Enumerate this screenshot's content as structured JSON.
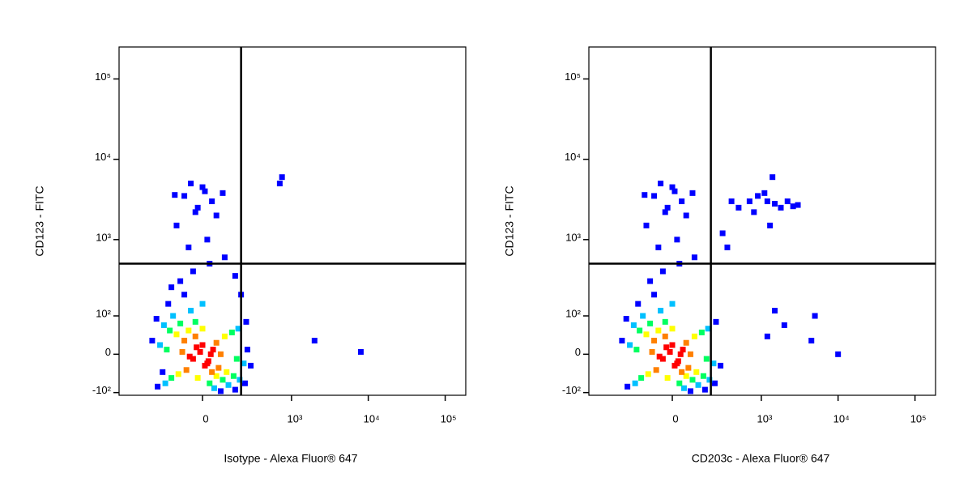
{
  "chart_data": [
    {
      "type": "scatter",
      "xlabel": "Isotype - Alexa Fluor® 647",
      "ylabel": "CD123 - FITC",
      "xscale": "asinh",
      "yscale": "asinh",
      "xlim": [
        -845,
        185000
      ],
      "ylim": [
        -110,
        250000
      ],
      "xticks": [
        0,
        {
          "value": 1000,
          "label": "10³"
        },
        {
          "value": 10000,
          "label": "10⁴"
        },
        {
          "value": 100000,
          "label": "10⁵"
        }
      ],
      "yticks": [
        {
          "value": -100,
          "label": "-10²"
        },
        0,
        {
          "value": 100,
          "label": "10²"
        },
        {
          "value": 1000,
          "label": "10³"
        },
        {
          "value": 10000,
          "label": "10⁴"
        },
        {
          "value": 100000,
          "label": "10⁵"
        }
      ],
      "gates": {
        "x": 200,
        "y": 500
      },
      "series": [
        {
          "color": "#0000ff",
          "x": [
            -260,
            240,
            -250,
            230,
            -170,
            160,
            -80,
            80,
            -300,
            280,
            -100,
            -40,
            30,
            100,
            -60,
            20,
            -120,
            60,
            -20,
            40,
            -80,
            10,
            -50,
            90,
            -130,
            0,
            -30,
            700,
            750,
            2000,
            8000,
            -150,
            160,
            200,
            -210,
            250
          ],
          "y": [
            90,
            80,
            -80,
            -70,
            150,
            -90,
            200,
            -95,
            30,
            -25,
            300,
            400,
            500,
            600,
            800,
            1000,
            1500,
            2000,
            2500,
            3000,
            3500,
            4000,
            5000,
            3800,
            3600,
            4500,
            2200,
            5000,
            6000,
            30,
            5,
            250,
            350,
            200,
            -40,
            10
          ]
        },
        {
          "color": "#00c0ff",
          "x": [
            -200,
            180,
            -190,
            190,
            -140,
            120,
            -50,
            50,
            -230,
            220,
            0
          ],
          "y": [
            70,
            60,
            -70,
            -60,
            100,
            -75,
            120,
            -85,
            20,
            -20,
            150
          ]
        },
        {
          "color": "#00ff60",
          "x": [
            -160,
            140,
            -150,
            150,
            -100,
            90,
            -30,
            30,
            -180,
            170
          ],
          "y": [
            55,
            50,
            -55,
            -50,
            75,
            -60,
            80,
            -70,
            10,
            -10
          ]
        },
        {
          "color": "#ffff00",
          "x": [
            -120,
            100,
            -110,
            110,
            -60,
            60,
            0,
            -20
          ],
          "y": [
            45,
            40,
            -45,
            -40,
            55,
            -50,
            60,
            -55
          ]
        },
        {
          "color": "#ff8000",
          "x": [
            -80,
            60,
            -70,
            70,
            -30,
            40,
            -90,
            80
          ],
          "y": [
            30,
            25,
            -35,
            -30,
            40,
            -40,
            5,
            0
          ]
        },
        {
          "color": "#ff0000",
          "x": [
            -40,
            -10,
            20,
            45,
            -25,
            10,
            35,
            -55,
            0,
            25
          ],
          "y": [
            -10,
            5,
            -20,
            10,
            15,
            -25,
            0,
            -5,
            20,
            -15
          ]
        }
      ]
    },
    {
      "type": "scatter",
      "xlabel": "CD203c - Alexa Fluor® 647",
      "ylabel": "CD123 - FITC",
      "xscale": "asinh",
      "yscale": "asinh",
      "xlim": [
        -845,
        185000
      ],
      "ylim": [
        -110,
        250000
      ],
      "xticks": [
        0,
        {
          "value": 1000,
          "label": "10³"
        },
        {
          "value": 10000,
          "label": "10⁴"
        },
        {
          "value": 100000,
          "label": "10⁵"
        }
      ],
      "yticks": [
        {
          "value": -100,
          "label": "-10²"
        },
        0,
        {
          "value": 100,
          "label": "10²"
        },
        {
          "value": 1000,
          "label": "10³"
        },
        {
          "value": 10000,
          "label": "10⁴"
        },
        {
          "value": 100000,
          "label": "10⁵"
        }
      ],
      "gates": {
        "x": 200,
        "y": 500
      },
      "series": [
        {
          "color": "#0000ff",
          "x": [
            -260,
            240,
            -250,
            230,
            -170,
            160,
            -80,
            80,
            -300,
            280,
            -100,
            -40,
            30,
            100,
            -60,
            20,
            -120,
            60,
            -20,
            40,
            -80,
            10,
            -50,
            90,
            -130,
            0,
            -30,
            500,
            700,
            900,
            1200,
            1500,
            1800,
            2200,
            2600,
            3000,
            800,
            1100,
            1400,
            400,
            1300,
            5000,
            10000,
            4500,
            1500,
            1200,
            2000,
            300,
            350
          ],
          "y": [
            90,
            80,
            -80,
            -70,
            150,
            -90,
            200,
            -95,
            30,
            -25,
            300,
            400,
            500,
            600,
            800,
            1000,
            1500,
            2000,
            2500,
            3000,
            3500,
            4000,
            5000,
            3800,
            3600,
            4500,
            2200,
            2500,
            3000,
            3500,
            3000,
            2800,
            2500,
            3000,
            2600,
            2700,
            2200,
            3800,
            6000,
            3000,
            1500,
            100,
            0,
            30,
            120,
            40,
            70,
            1200,
            800
          ]
        },
        {
          "color": "#00c0ff",
          "x": [
            -200,
            180,
            -190,
            190,
            -140,
            120,
            -50,
            50,
            -230,
            220,
            0
          ],
          "y": [
            70,
            60,
            -70,
            -60,
            100,
            -75,
            120,
            -85,
            20,
            -20,
            150
          ]
        },
        {
          "color": "#00ff60",
          "x": [
            -160,
            140,
            -150,
            150,
            -100,
            90,
            -30,
            30,
            -180,
            170
          ],
          "y": [
            55,
            50,
            -55,
            -50,
            75,
            -60,
            80,
            -70,
            10,
            -10
          ]
        },
        {
          "color": "#ffff00",
          "x": [
            -120,
            100,
            -110,
            110,
            -60,
            60,
            0,
            -20
          ],
          "y": [
            45,
            40,
            -45,
            -40,
            55,
            -50,
            60,
            -55
          ]
        },
        {
          "color": "#ff8000",
          "x": [
            -80,
            60,
            -70,
            70,
            -30,
            40,
            -90,
            80
          ],
          "y": [
            30,
            25,
            -35,
            -30,
            40,
            -40,
            5,
            0
          ]
        },
        {
          "color": "#ff0000",
          "x": [
            -40,
            -10,
            20,
            45,
            -25,
            10,
            35,
            -55,
            0,
            25
          ],
          "y": [
            -10,
            5,
            -20,
            10,
            15,
            -25,
            0,
            -5,
            20,
            -15
          ]
        }
      ]
    }
  ]
}
